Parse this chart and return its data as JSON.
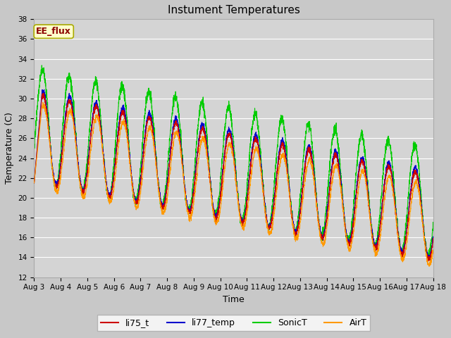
{
  "title": "Instument Temperatures",
  "xlabel": "Time",
  "ylabel": "Temperature (C)",
  "ylim": [
    12,
    38
  ],
  "annotation": "EE_flux",
  "colors": {
    "li75_t": "#cc0000",
    "li77_temp": "#0000cc",
    "SonicT": "#00cc00",
    "AirT": "#ff9900"
  },
  "tick_labels": [
    "Aug 3",
    "Aug 4",
    "Aug 5",
    "Aug 6",
    "Aug 7",
    "Aug 8",
    "Aug 9",
    "Aug 10",
    "Aug 11",
    "Aug 12",
    "Aug 13",
    "Aug 14",
    "Aug 15",
    "Aug 16",
    "Aug 17",
    "Aug 18"
  ],
  "title_fontsize": 11,
  "axis_fontsize": 9,
  "tick_fontsize": 7.5,
  "legend_fontsize": 9,
  "fig_facecolor": "#c8c8c8",
  "ax_facecolor": "#d4d4d4"
}
